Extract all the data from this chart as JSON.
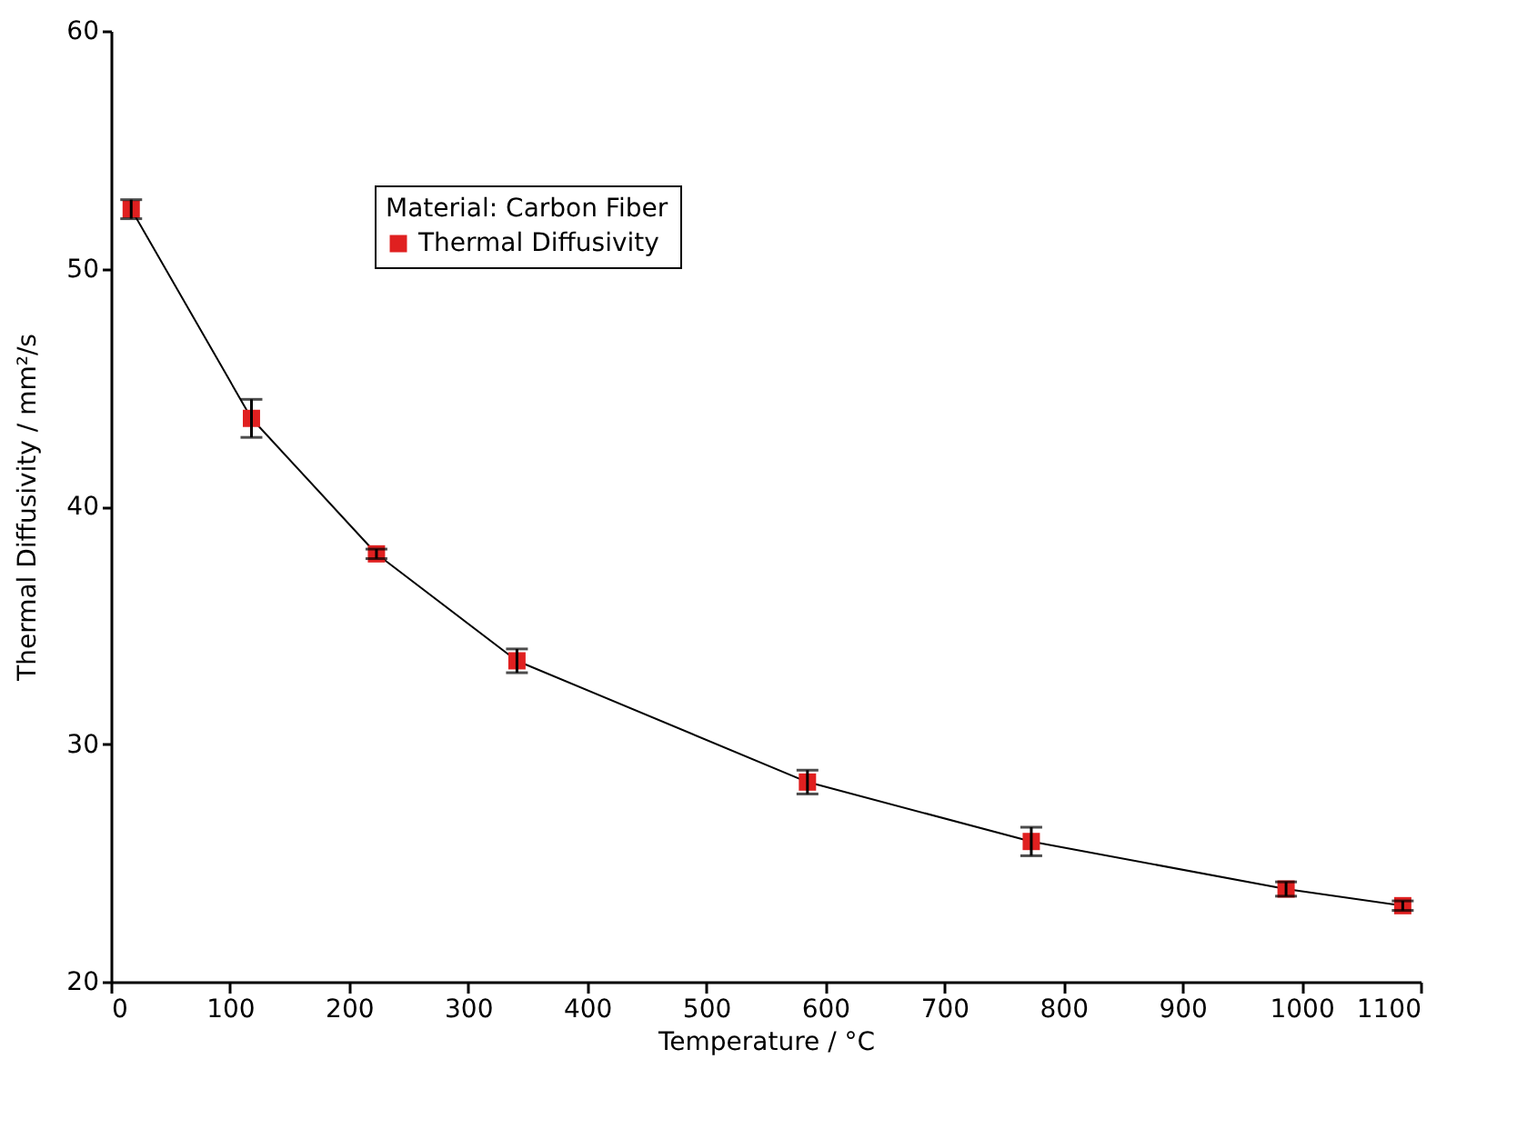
{
  "chart_data": {
    "type": "line",
    "xlabel": "Temperature / °C",
    "ylabel": "Thermal Diffusivity / mm²/s",
    "legend_title": "Material: Carbon Fiber",
    "x": [
      17,
      118,
      223,
      341,
      585,
      773,
      987,
      1085
    ],
    "series": [
      {
        "name": "Thermal Diffusivity",
        "color": "#e02020",
        "values": [
          52.5,
          43.7,
          38.0,
          33.5,
          28.4,
          25.9,
          23.9,
          23.2
        ],
        "errors": [
          0.4,
          0.8,
          0.2,
          0.5,
          0.5,
          0.6,
          0.3,
          0.2
        ]
      }
    ],
    "xlim": [
      0,
      1100
    ],
    "xticks": [
      0,
      100,
      200,
      300,
      400,
      500,
      600,
      700,
      800,
      900,
      1000,
      1100
    ],
    "ylim": [
      20,
      60
    ],
    "yticks": [
      20,
      30,
      40,
      50,
      60
    ],
    "marker": "square",
    "line_style": "solid",
    "grid": false,
    "legend": "top left"
  }
}
